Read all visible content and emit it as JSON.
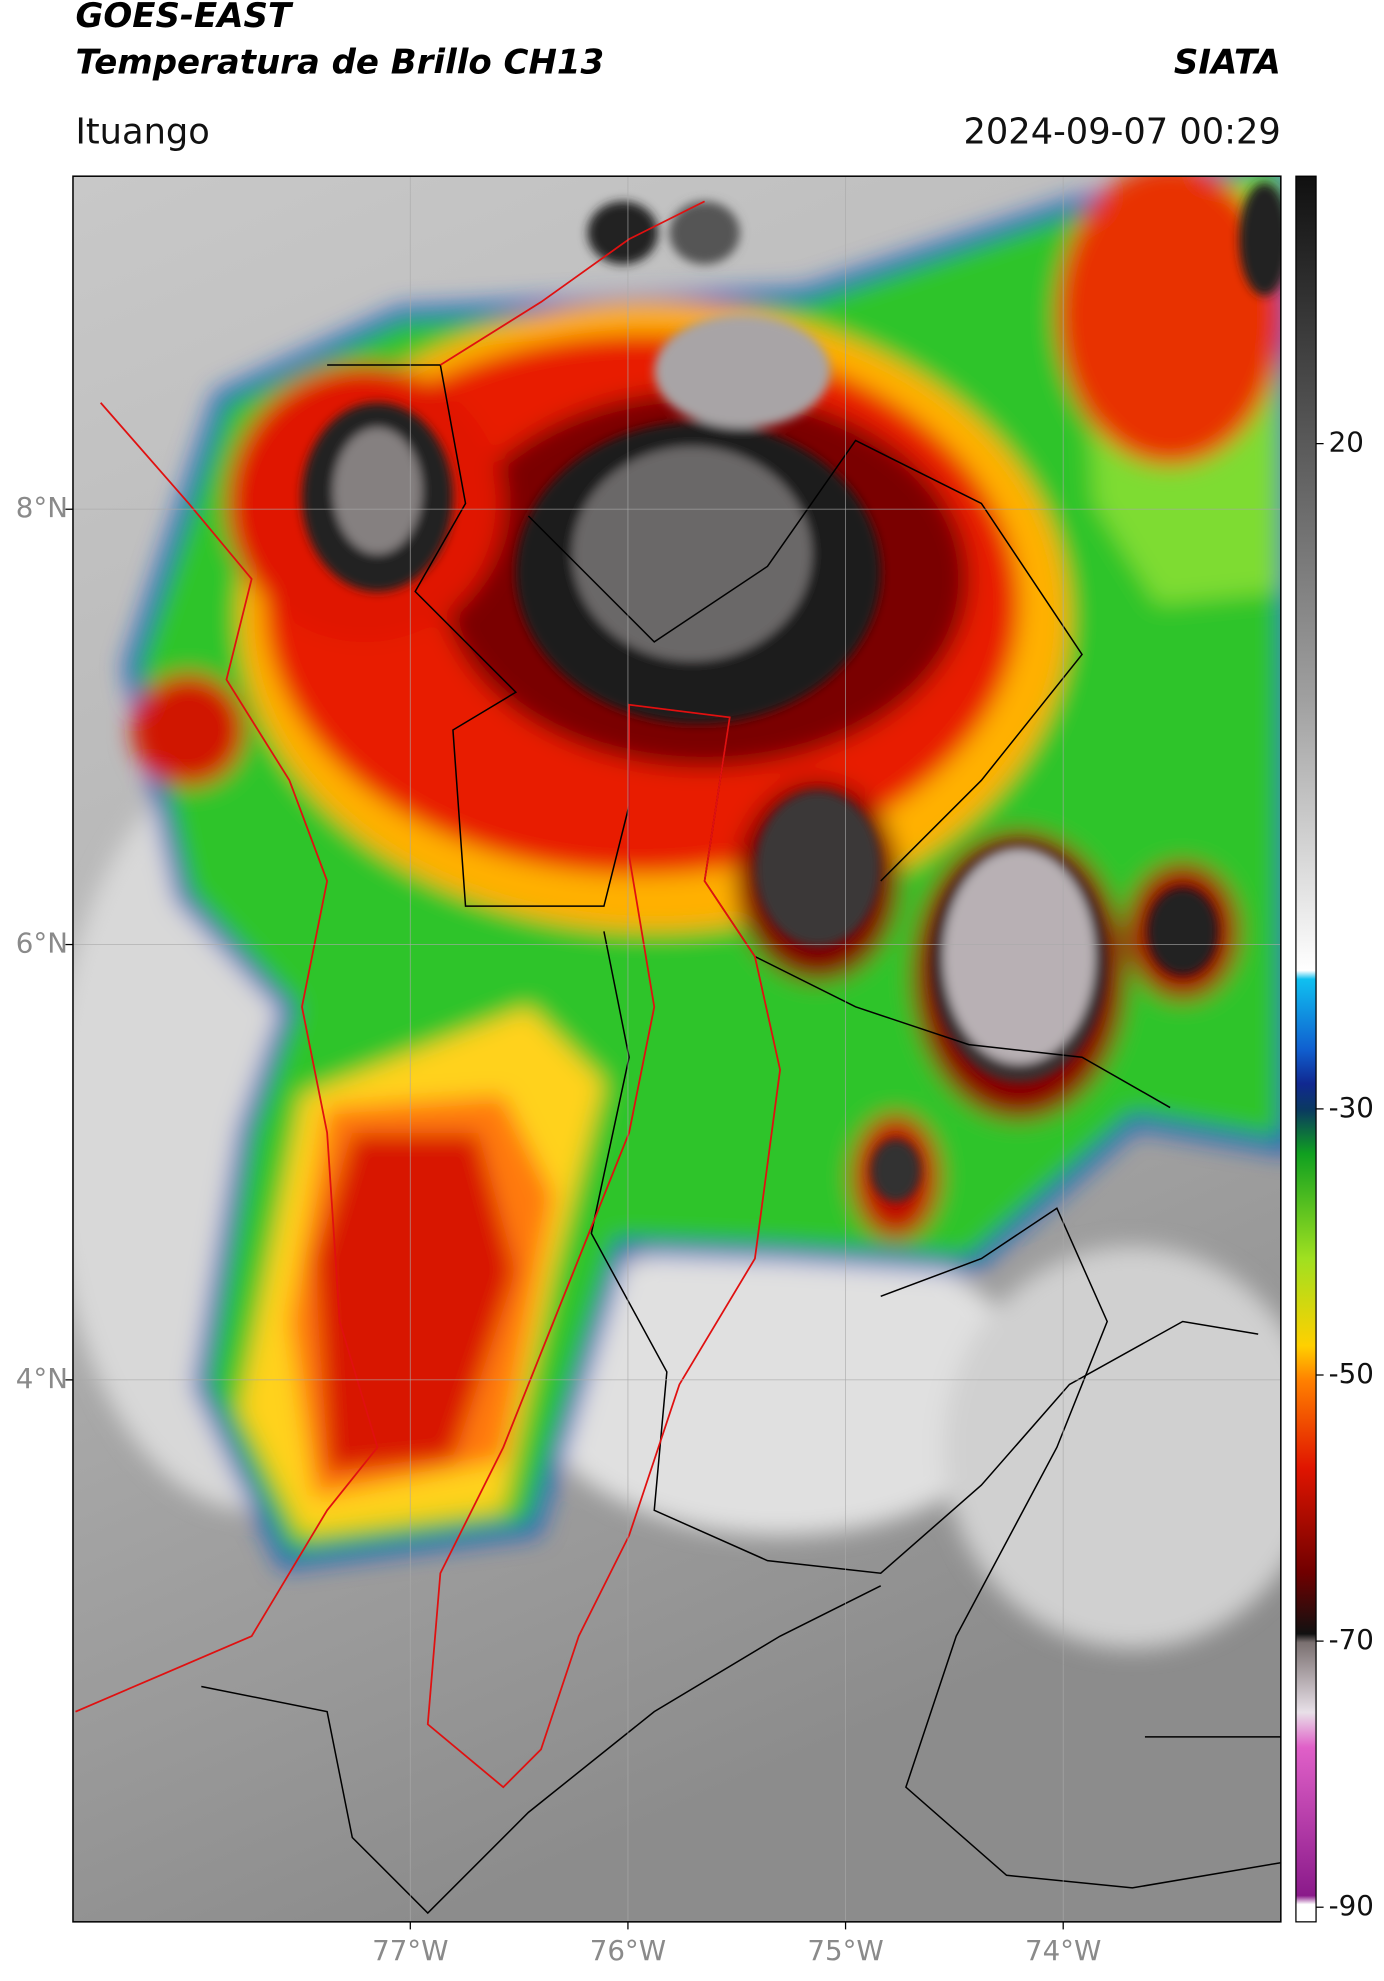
{
  "header": {
    "title": "GOES-EAST",
    "subtitle": "Temperatura de Brillo CH13",
    "organization": "SIATA",
    "location": "Ituango",
    "datetime": "2024-09-07 00:29"
  },
  "map": {
    "xlim": [
      -78.55,
      -73.0
    ],
    "ylim": [
      1.51,
      9.53
    ],
    "lon_ticks": [
      {
        "value": -77,
        "label": "77°W"
      },
      {
        "value": -76,
        "label": "76°W"
      },
      {
        "value": -75,
        "label": "75°W"
      },
      {
        "value": -74,
        "label": "74°W"
      }
    ],
    "lat_ticks": [
      {
        "value": 8,
        "label": "8°N"
      },
      {
        "value": 6,
        "label": "6°N"
      },
      {
        "value": 4,
        "label": "4°N"
      }
    ],
    "grid": true
  },
  "colorbar": {
    "lim": [
      -91.1,
      40.1
    ],
    "ticks": [
      20,
      -30,
      -50,
      -70,
      -90
    ]
  }
}
